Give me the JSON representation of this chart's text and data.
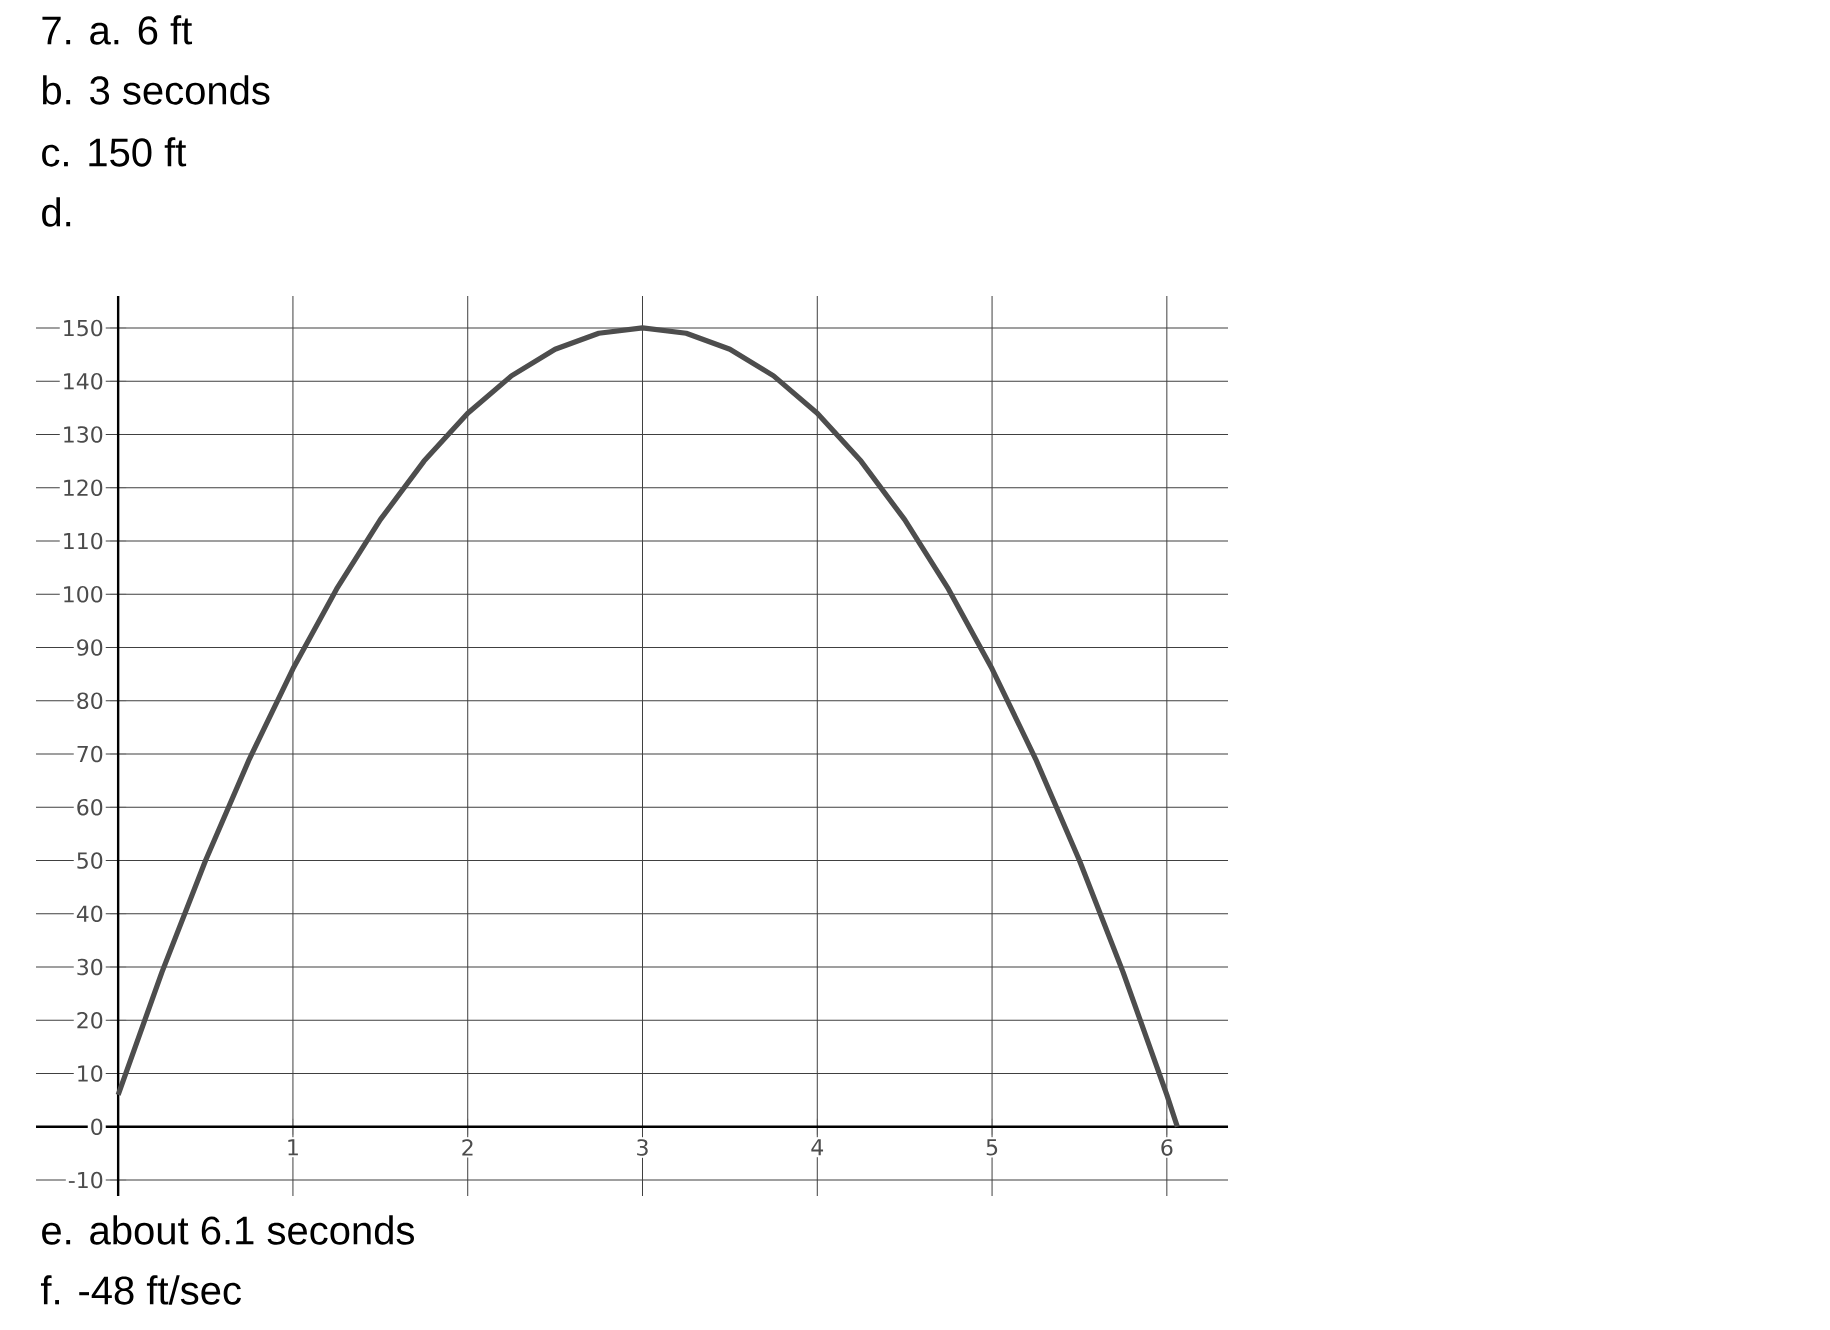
{
  "chart_data": {
    "type": "line",
    "annotations": [
      "7. a.  6 ft",
      "b.  3 seconds",
      "c.  150 ft",
      "d.",
      "e.  about 6.1 seconds",
      "f.  -48 ft/sec"
    ],
    "x": [
      0,
      0.25,
      0.5,
      0.75,
      1,
      1.25,
      1.5,
      1.75,
      2,
      2.25,
      2.5,
      2.75,
      3,
      3.25,
      3.5,
      3.75,
      4,
      4.25,
      4.5,
      4.75,
      5,
      5.25,
      5.5,
      5.75,
      6,
      6.06
    ],
    "series": [
      {
        "color": "#4d4d4d",
        "values": [
          6,
          29,
          50,
          69,
          86,
          101,
          114,
          125,
          134,
          141,
          146,
          149,
          150,
          149,
          146,
          141,
          134,
          125,
          114,
          101,
          86,
          69,
          50,
          29,
          6,
          0
        ]
      }
    ],
    "xlim": [
      -0.47,
      6.35
    ],
    "ylim": [
      -13,
      156
    ],
    "xticks": [
      1,
      2,
      3,
      4,
      5,
      6
    ],
    "yticks": [
      -10,
      0,
      10,
      20,
      30,
      40,
      50,
      60,
      70,
      80,
      90,
      100,
      110,
      120,
      130,
      140,
      150
    ],
    "grid": true,
    "marker": "none",
    "line_style": "solid"
  }
}
